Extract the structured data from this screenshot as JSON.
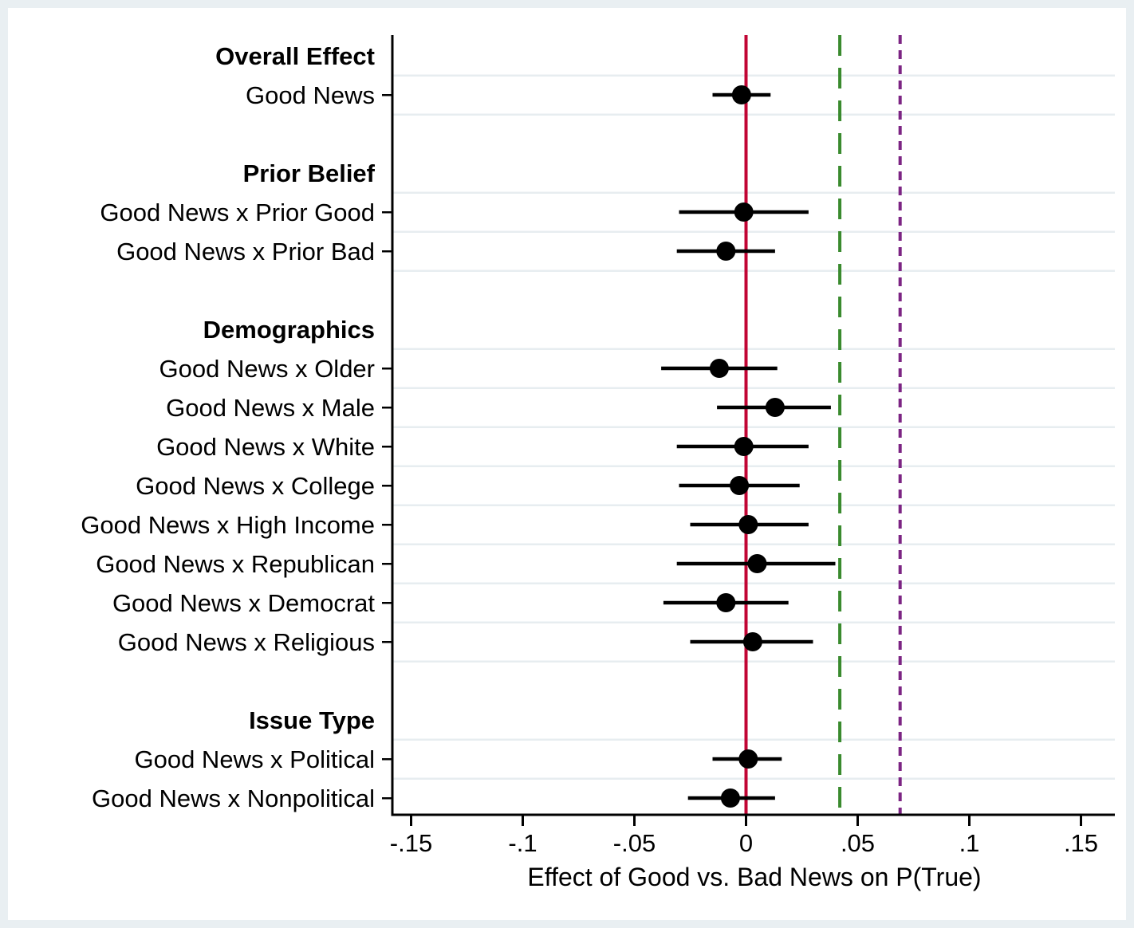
{
  "chart_data": {
    "type": "scatter",
    "subtype": "coefficient-forest-plot",
    "title": "",
    "xlabel": "Effect of Good vs. Bad News on P(True)",
    "ylabel": "",
    "xlim": [
      -0.159,
      0.166
    ],
    "grid": "horizontal-light",
    "x_ticks": [
      -0.15,
      -0.1,
      -0.05,
      0,
      0.05,
      0.1,
      0.15
    ],
    "x_tick_labels": [
      "-.15",
      "-.1",
      "-.05",
      "0",
      ".05",
      ".1",
      ".15"
    ],
    "rows": [
      {
        "kind": "header",
        "label": "Overall Effect"
      },
      {
        "kind": "coef",
        "label": "Good News",
        "est": -0.002,
        "lo": -0.015,
        "hi": 0.011
      },
      {
        "kind": "spacer",
        "label": ""
      },
      {
        "kind": "header",
        "label": "Prior Belief"
      },
      {
        "kind": "coef",
        "label": "Good News x Prior Good",
        "est": -0.001,
        "lo": -0.03,
        "hi": 0.028
      },
      {
        "kind": "coef",
        "label": "Good News x Prior Bad",
        "est": -0.009,
        "lo": -0.031,
        "hi": 0.013
      },
      {
        "kind": "spacer",
        "label": ""
      },
      {
        "kind": "header",
        "label": "Demographics"
      },
      {
        "kind": "coef",
        "label": "Good News x Older",
        "est": -0.012,
        "lo": -0.038,
        "hi": 0.014
      },
      {
        "kind": "coef",
        "label": "Good News x Male",
        "est": 0.013,
        "lo": -0.013,
        "hi": 0.038
      },
      {
        "kind": "coef",
        "label": "Good News x White",
        "est": -0.001,
        "lo": -0.031,
        "hi": 0.028
      },
      {
        "kind": "coef",
        "label": "Good News x College",
        "est": -0.003,
        "lo": -0.03,
        "hi": 0.024
      },
      {
        "kind": "coef",
        "label": "Good News x High Income",
        "est": 0.001,
        "lo": -0.025,
        "hi": 0.028
      },
      {
        "kind": "coef",
        "label": "Good News x Republican",
        "est": 0.005,
        "lo": -0.031,
        "hi": 0.04
      },
      {
        "kind": "coef",
        "label": "Good News x Democrat",
        "est": -0.009,
        "lo": -0.037,
        "hi": 0.019
      },
      {
        "kind": "coef",
        "label": "Good News x Religious",
        "est": 0.003,
        "lo": -0.025,
        "hi": 0.03
      },
      {
        "kind": "spacer",
        "label": ""
      },
      {
        "kind": "header",
        "label": "Issue Type"
      },
      {
        "kind": "coef",
        "label": "Good News x Political",
        "est": 0.001,
        "lo": -0.015,
        "hi": 0.016
      },
      {
        "kind": "coef",
        "label": "Good News x Nonpolitical",
        "est": -0.007,
        "lo": -0.026,
        "hi": 0.013
      }
    ],
    "ref_lines": [
      {
        "name": "zero-line",
        "value": 0,
        "style": "solid",
        "color": "#c10534"
      },
      {
        "name": "green-dashed-line",
        "value": 0.042,
        "style": "dashed",
        "color": "#3a8a2e"
      },
      {
        "name": "purple-dotted-line",
        "value": 0.069,
        "style": "dotted",
        "color": "#7c2483"
      }
    ],
    "colors": {
      "point": "#000000",
      "ci": "#000000",
      "axis": "#000000",
      "text": "#000000",
      "gridline": "#e7edf0",
      "frame": "#e9eff2",
      "plot_bg": "#ffffff"
    },
    "legend": "none"
  }
}
